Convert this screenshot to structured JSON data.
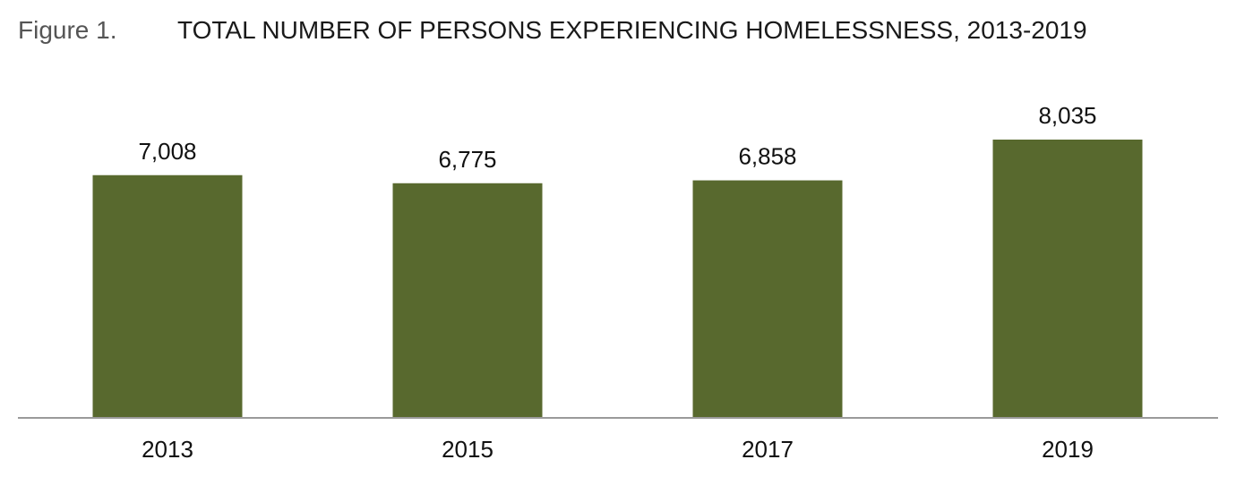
{
  "figure": {
    "label": "Figure 1.",
    "title": "TOTAL NUMBER OF PERSONS EXPERIENCING HOMELESSNESS, 2013-2019"
  },
  "colors": {
    "bar": "#58692e",
    "axis": "#9a9a9a"
  },
  "chart_data": {
    "type": "bar",
    "title": "TOTAL NUMBER OF PERSONS EXPERIENCING HOMELESSNESS, 2013-2019",
    "xlabel": "",
    "ylabel": "",
    "categories": [
      "2013",
      "2015",
      "2017",
      "2019"
    ],
    "values": [
      7008,
      6775,
      6858,
      8035
    ],
    "value_labels": [
      "7,008",
      "6,775",
      "6,858",
      "8,035"
    ],
    "ylim": [
      0,
      8035
    ],
    "grid": false,
    "legend": "none"
  }
}
